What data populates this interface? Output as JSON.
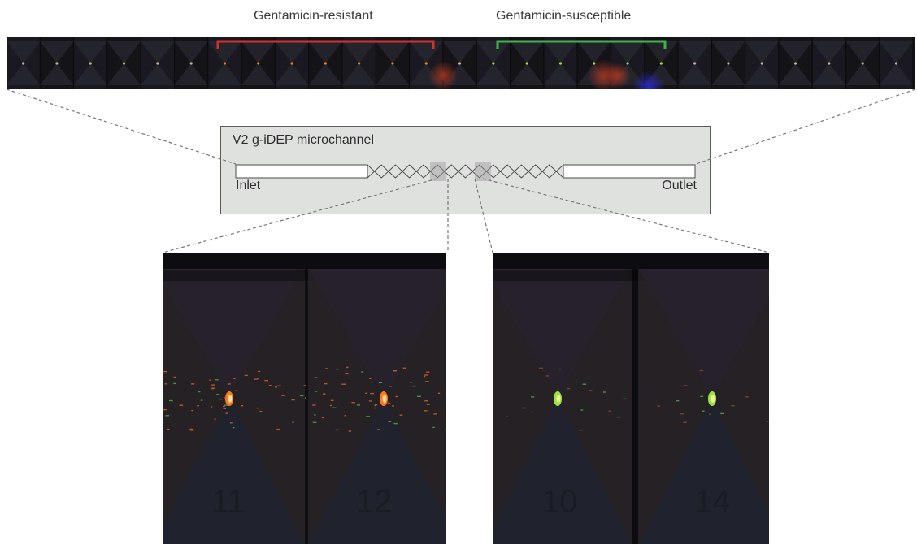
{
  "top_labels": {
    "resistant": "Gentamicin-resistant",
    "susceptible": "Gentamicin-susceptible"
  },
  "schematic": {
    "title": "V2 g-iDEP microchannel",
    "inlet": "Inlet",
    "outlet": "Outlet"
  },
  "colors": {
    "resistant_bracket": "#d5302e",
    "susceptible_bracket": "#3db34a",
    "resistant_cells": "#ff7a1a",
    "susceptible_cells": "#9be43a",
    "guide_lines": "#777777",
    "schematic_fill": "#dfe1df"
  },
  "bottom_panels": {
    "left": {
      "faint_markers": [
        "11",
        "12"
      ]
    },
    "right": {
      "faint_markers": [
        "10",
        "14"
      ]
    }
  }
}
